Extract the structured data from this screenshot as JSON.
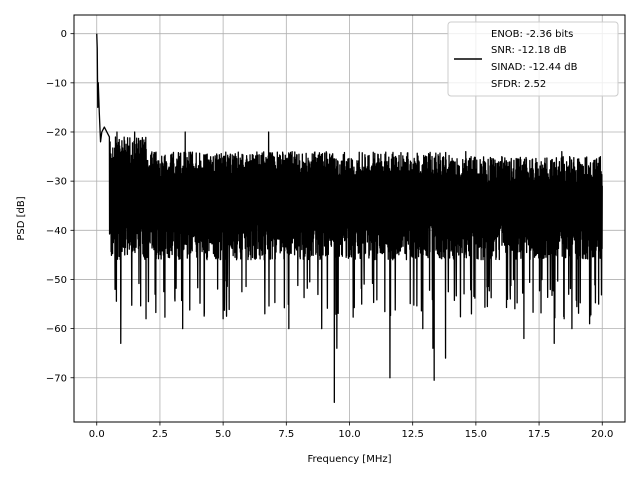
{
  "chart_data": {
    "type": "line",
    "xlabel": "Frequency [MHz]",
    "ylabel": "PSD [dB]",
    "xlim": [
      -0.9,
      20.9
    ],
    "ylim": [
      -79,
      3.8
    ],
    "xticks": [
      0.0,
      2.5,
      5.0,
      7.5,
      10.0,
      12.5,
      15.0,
      17.5,
      20.0
    ],
    "xtick_labels": [
      "0.0",
      "2.5",
      "5.0",
      "7.5",
      "10.0",
      "12.5",
      "15.0",
      "17.5",
      "20.0"
    ],
    "yticks": [
      0,
      -10,
      -20,
      -30,
      -40,
      -50,
      -60,
      -70
    ],
    "ytick_labels": [
      "0",
      "−10",
      "−20",
      "−30",
      "−40",
      "−50",
      "−60",
      "−70"
    ],
    "grid": true,
    "legend_position": "top-right",
    "legend_lines": [
      "ENOB: -2.36 bits",
      "SNR: -12.18 dB",
      "SINAD: -12.44 dB",
      "SFDR: 2.52"
    ],
    "series": [
      {
        "color": "#000000",
        "x_range": [
          0,
          20
        ],
        "noise_band": {
          "upper": -24,
          "lower": -46,
          "mean": -35
        },
        "low_freq_feature": {
          "x": [
            0.0,
            0.02,
            0.04,
            0.06,
            0.1,
            0.15,
            0.2,
            0.3,
            0.5
          ],
          "y": [
            0,
            -3,
            -15,
            -10,
            -16,
            -22,
            -20,
            -19,
            -21
          ]
        },
        "notable_dips": [
          {
            "x": 0.95,
            "y": -63
          },
          {
            "x": 1.95,
            "y": -58
          },
          {
            "x": 3.4,
            "y": -60
          },
          {
            "x": 5.0,
            "y": -58
          },
          {
            "x": 7.6,
            "y": -60
          },
          {
            "x": 8.9,
            "y": -60
          },
          {
            "x": 9.4,
            "y": -75
          },
          {
            "x": 9.5,
            "y": -64
          },
          {
            "x": 11.6,
            "y": -70
          },
          {
            "x": 12.9,
            "y": -60
          },
          {
            "x": 13.3,
            "y": -64
          },
          {
            "x": 13.35,
            "y": -70.5
          },
          {
            "x": 13.8,
            "y": -66
          },
          {
            "x": 16.9,
            "y": -62
          },
          {
            "x": 18.1,
            "y": -63
          },
          {
            "x": 18.8,
            "y": -60
          },
          {
            "x": 19.5,
            "y": -59
          }
        ],
        "notable_peaks": [
          {
            "x": 0.8,
            "y": -20
          },
          {
            "x": 1.5,
            "y": -20
          },
          {
            "x": 3.5,
            "y": -20
          },
          {
            "x": 6.8,
            "y": -20
          },
          {
            "x": 14.6,
            "y": -24
          },
          {
            "x": 18.4,
            "y": -24
          }
        ]
      }
    ]
  }
}
